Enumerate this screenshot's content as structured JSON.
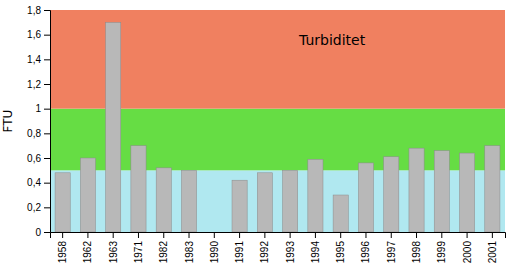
{
  "chart_data": {
    "type": "bar",
    "title": "Turbiditet",
    "y_label": "FTU",
    "categories": [
      "1958",
      "1962",
      "1963",
      "1971",
      "1982",
      "1983",
      "1990",
      "1991",
      "1992",
      "1993",
      "1994",
      "1995",
      "1996",
      "1997",
      "1998",
      "1999",
      "2000",
      "2001"
    ],
    "values": [
      0.48,
      0.6,
      1.7,
      0.7,
      0.52,
      0.5,
      0.0,
      0.42,
      0.48,
      0.5,
      0.59,
      0.3,
      0.56,
      0.61,
      0.68,
      0.66,
      0.64,
      0.7
    ],
    "color": "#b8b8b8",
    "zones": [
      {
        "from": 0,
        "to": 0.5,
        "color": "#b0e8f0"
      },
      {
        "from": 0.5,
        "to": 1.0,
        "color": "#66dd44"
      },
      {
        "from": 1.0,
        "to": 1.8,
        "color": "#f08060"
      }
    ],
    "ylim": [
      0,
      1.8
    ],
    "yticks": [
      0,
      {
        "value": 0.2,
        "label": "0,2"
      },
      {
        "value": 0.4,
        "label": "0,4"
      },
      {
        "value": 0.6,
        "label": "0,6"
      },
      {
        "value": 0.8,
        "label": "0,8"
      },
      1,
      {
        "value": 1.2,
        "label": "1,2"
      },
      {
        "value": 1.4,
        "label": "1,4"
      },
      {
        "value": 1.6,
        "label": "1,6"
      },
      {
        "value": 1.8,
        "label": "1,8"
      }
    ],
    "grid": false
  }
}
